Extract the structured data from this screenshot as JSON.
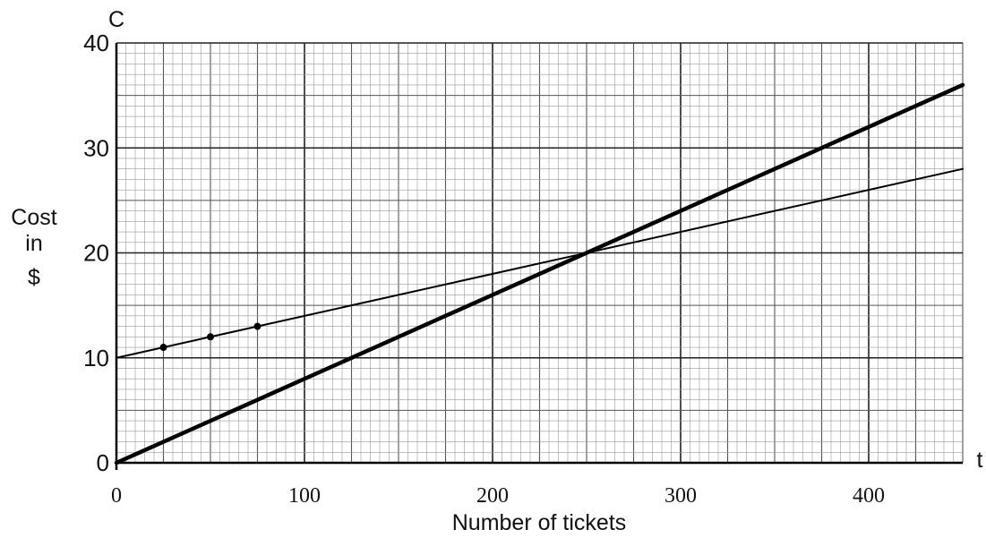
{
  "chart_data": {
    "type": "line",
    "title": "",
    "xlabel": "Number of tickets",
    "ylabel_lines": [
      "Cost",
      "in",
      "$"
    ],
    "x_axis_var": "t",
    "y_axis_var": "C",
    "xlim": [
      0,
      400
    ],
    "ylim": [
      0,
      40
    ],
    "x_ticks": [
      0,
      100,
      200,
      300,
      400
    ],
    "y_ticks": [
      0,
      10,
      20,
      30,
      40
    ],
    "grid": true,
    "series": [
      {
        "style": "thick",
        "points": [
          [
            0,
            0
          ],
          [
            400,
            32
          ]
        ]
      },
      {
        "style": "thin",
        "points": [
          [
            0,
            10
          ],
          [
            400,
            26
          ]
        ]
      }
    ],
    "marked_points": [
      [
        25,
        11
      ],
      [
        50,
        12
      ],
      [
        75,
        13
      ]
    ]
  }
}
